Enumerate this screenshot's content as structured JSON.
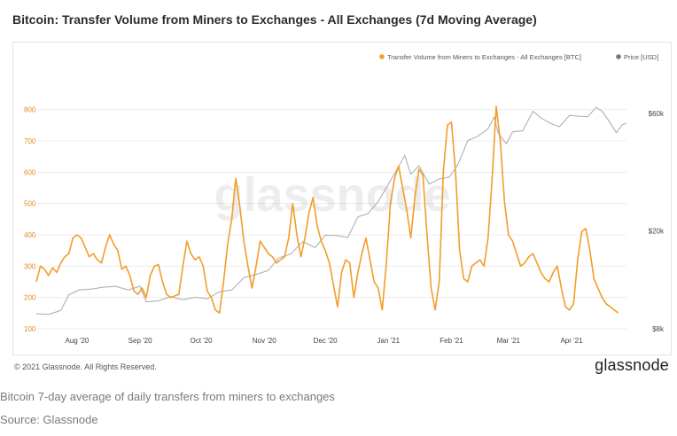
{
  "title": "Bitcoin: Transfer Volume from Miners to Exchanges - All Exchanges (7d Moving Average)",
  "copyright": "© 2021 Glassnode. All Rights Reserved.",
  "brand": "glassnode",
  "watermark": "glassnode",
  "caption": "Bitcoin 7-day average of daily transfers from miners to exchanges",
  "source": "Source: Glassnode",
  "colors": {
    "volume": "#f29d2a",
    "price": "#b0b0b0",
    "left_axis_text": "#e08a1e",
    "right_axis_text": "#444444",
    "grid": "#ececec"
  },
  "chart_data": {
    "type": "line",
    "legend_position": "top-right",
    "grid": true,
    "x_range": [
      "2020-07-12",
      "2021-04-28"
    ],
    "x_ticks": [
      {
        "date": "2020-08-01",
        "label": "Aug '20"
      },
      {
        "date": "2020-09-01",
        "label": "Sep '20"
      },
      {
        "date": "2020-10-01",
        "label": "Oct '20"
      },
      {
        "date": "2020-11-01",
        "label": "Nov '20"
      },
      {
        "date": "2020-12-01",
        "label": "Dec '20"
      },
      {
        "date": "2021-01-01",
        "label": "Jan '21"
      },
      {
        "date": "2021-02-01",
        "label": "Feb '21"
      },
      {
        "date": "2021-03-01",
        "label": "Mar '21"
      },
      {
        "date": "2021-04-01",
        "label": "Apr '21"
      }
    ],
    "y_left": {
      "range": [
        100,
        850
      ],
      "ticks": [
        100,
        200,
        300,
        400,
        500,
        600,
        700,
        800
      ]
    },
    "y_right": {
      "scale": "log",
      "range": [
        8000,
        72000
      ],
      "ticks": [
        {
          "value": 8000,
          "label": "$8k"
        },
        {
          "value": 20000,
          "label": "$20k"
        },
        {
          "value": 60000,
          "label": "$60k"
        }
      ]
    },
    "series": [
      {
        "name": "Transfer Volume from Miners to Exchanges - All Exchanges [BTC]",
        "axis": "left",
        "points": [
          [
            "2020-07-12",
            250
          ],
          [
            "2020-07-14",
            300
          ],
          [
            "2020-07-16",
            290
          ],
          [
            "2020-07-18",
            270
          ],
          [
            "2020-07-20",
            295
          ],
          [
            "2020-07-22",
            280
          ],
          [
            "2020-07-24",
            310
          ],
          [
            "2020-07-26",
            330
          ],
          [
            "2020-07-28",
            340
          ],
          [
            "2020-07-30",
            390
          ],
          [
            "2020-08-01",
            400
          ],
          [
            "2020-08-03",
            390
          ],
          [
            "2020-08-05",
            360
          ],
          [
            "2020-08-07",
            330
          ],
          [
            "2020-08-09",
            340
          ],
          [
            "2020-08-11",
            320
          ],
          [
            "2020-08-13",
            310
          ],
          [
            "2020-08-15",
            360
          ],
          [
            "2020-08-17",
            400
          ],
          [
            "2020-08-19",
            370
          ],
          [
            "2020-08-21",
            350
          ],
          [
            "2020-08-23",
            290
          ],
          [
            "2020-08-25",
            300
          ],
          [
            "2020-08-27",
            270
          ],
          [
            "2020-08-29",
            220
          ],
          [
            "2020-08-31",
            210
          ],
          [
            "2020-09-02",
            230
          ],
          [
            "2020-09-04",
            200
          ],
          [
            "2020-09-06",
            270
          ],
          [
            "2020-09-08",
            300
          ],
          [
            "2020-09-10",
            305
          ],
          [
            "2020-09-12",
            250
          ],
          [
            "2020-09-14",
            210
          ],
          [
            "2020-09-16",
            200
          ],
          [
            "2020-09-18",
            205
          ],
          [
            "2020-09-20",
            210
          ],
          [
            "2020-09-22",
            300
          ],
          [
            "2020-09-24",
            380
          ],
          [
            "2020-09-26",
            340
          ],
          [
            "2020-09-28",
            320
          ],
          [
            "2020-09-30",
            330
          ],
          [
            "2020-10-02",
            300
          ],
          [
            "2020-10-04",
            220
          ],
          [
            "2020-10-06",
            200
          ],
          [
            "2020-10-08",
            160
          ],
          [
            "2020-10-10",
            150
          ],
          [
            "2020-10-12",
            250
          ],
          [
            "2020-10-14",
            370
          ],
          [
            "2020-10-16",
            450
          ],
          [
            "2020-10-18",
            580
          ],
          [
            "2020-10-20",
            490
          ],
          [
            "2020-10-22",
            380
          ],
          [
            "2020-10-24",
            300
          ],
          [
            "2020-10-26",
            230
          ],
          [
            "2020-10-28",
            300
          ],
          [
            "2020-10-30",
            380
          ],
          [
            "2020-11-01",
            360
          ],
          [
            "2020-11-03",
            340
          ],
          [
            "2020-11-05",
            330
          ],
          [
            "2020-11-07",
            310
          ],
          [
            "2020-11-09",
            320
          ],
          [
            "2020-11-11",
            330
          ],
          [
            "2020-11-13",
            390
          ],
          [
            "2020-11-15",
            500
          ],
          [
            "2020-11-17",
            400
          ],
          [
            "2020-11-19",
            330
          ],
          [
            "2020-11-21",
            390
          ],
          [
            "2020-11-23",
            470
          ],
          [
            "2020-11-25",
            520
          ],
          [
            "2020-11-27",
            430
          ],
          [
            "2020-11-29",
            380
          ],
          [
            "2020-12-01",
            350
          ],
          [
            "2020-12-03",
            310
          ],
          [
            "2020-12-05",
            240
          ],
          [
            "2020-12-07",
            170
          ],
          [
            "2020-12-09",
            280
          ],
          [
            "2020-12-11",
            320
          ],
          [
            "2020-12-13",
            310
          ],
          [
            "2020-12-15",
            200
          ],
          [
            "2020-12-17",
            280
          ],
          [
            "2020-12-19",
            340
          ],
          [
            "2020-12-21",
            390
          ],
          [
            "2020-12-23",
            320
          ],
          [
            "2020-12-25",
            250
          ],
          [
            "2020-12-27",
            230
          ],
          [
            "2020-12-29",
            160
          ],
          [
            "2020-12-31",
            310
          ],
          [
            "2021-01-02",
            500
          ],
          [
            "2021-01-04",
            580
          ],
          [
            "2021-01-06",
            620
          ],
          [
            "2021-01-08",
            550
          ],
          [
            "2021-01-10",
            480
          ],
          [
            "2021-01-12",
            390
          ],
          [
            "2021-01-14",
            520
          ],
          [
            "2021-01-16",
            610
          ],
          [
            "2021-01-18",
            590
          ],
          [
            "2021-01-20",
            400
          ],
          [
            "2021-01-22",
            230
          ],
          [
            "2021-01-24",
            160
          ],
          [
            "2021-01-26",
            250
          ],
          [
            "2021-01-28",
            600
          ],
          [
            "2021-01-30",
            750
          ],
          [
            "2021-02-01",
            760
          ],
          [
            "2021-02-03",
            600
          ],
          [
            "2021-02-05",
            350
          ],
          [
            "2021-02-07",
            260
          ],
          [
            "2021-02-09",
            250
          ],
          [
            "2021-02-11",
            300
          ],
          [
            "2021-02-13",
            310
          ],
          [
            "2021-02-15",
            320
          ],
          [
            "2021-02-17",
            300
          ],
          [
            "2021-02-19",
            390
          ],
          [
            "2021-02-21",
            580
          ],
          [
            "2021-02-23",
            810
          ],
          [
            "2021-02-25",
            700
          ],
          [
            "2021-02-27",
            510
          ],
          [
            "2021-03-01",
            400
          ],
          [
            "2021-03-03",
            380
          ],
          [
            "2021-03-05",
            340
          ],
          [
            "2021-03-07",
            300
          ],
          [
            "2021-03-09",
            310
          ],
          [
            "2021-03-11",
            330
          ],
          [
            "2021-03-13",
            340
          ],
          [
            "2021-03-15",
            310
          ],
          [
            "2021-03-17",
            280
          ],
          [
            "2021-03-19",
            260
          ],
          [
            "2021-03-21",
            250
          ],
          [
            "2021-03-23",
            280
          ],
          [
            "2021-03-25",
            300
          ],
          [
            "2021-03-27",
            230
          ],
          [
            "2021-03-29",
            170
          ],
          [
            "2021-03-31",
            160
          ],
          [
            "2021-04-02",
            180
          ],
          [
            "2021-04-04",
            320
          ],
          [
            "2021-04-06",
            410
          ],
          [
            "2021-04-08",
            420
          ],
          [
            "2021-04-10",
            350
          ],
          [
            "2021-04-12",
            260
          ],
          [
            "2021-04-14",
            230
          ],
          [
            "2021-04-16",
            200
          ],
          [
            "2021-04-18",
            180
          ],
          [
            "2021-04-20",
            170
          ],
          [
            "2021-04-22",
            160
          ],
          [
            "2021-04-24",
            150
          ]
        ]
      },
      {
        "name": "Price [USD]",
        "axis": "right",
        "points": [
          [
            "2020-07-12",
            9200
          ],
          [
            "2020-07-18",
            9150
          ],
          [
            "2020-07-24",
            9500
          ],
          [
            "2020-07-28",
            11000
          ],
          [
            "2020-08-02",
            11500
          ],
          [
            "2020-08-08",
            11600
          ],
          [
            "2020-08-14",
            11800
          ],
          [
            "2020-08-20",
            11900
          ],
          [
            "2020-08-26",
            11500
          ],
          [
            "2020-09-01",
            11900
          ],
          [
            "2020-09-04",
            10300
          ],
          [
            "2020-09-10",
            10400
          ],
          [
            "2020-09-16",
            10800
          ],
          [
            "2020-09-22",
            10500
          ],
          [
            "2020-09-28",
            10750
          ],
          [
            "2020-10-04",
            10600
          ],
          [
            "2020-10-10",
            11300
          ],
          [
            "2020-10-16",
            11500
          ],
          [
            "2020-10-22",
            12900
          ],
          [
            "2020-10-28",
            13300
          ],
          [
            "2020-11-03",
            13800
          ],
          [
            "2020-11-08",
            15500
          ],
          [
            "2020-11-14",
            16100
          ],
          [
            "2020-11-20",
            18100
          ],
          [
            "2020-11-26",
            17100
          ],
          [
            "2020-12-01",
            19200
          ],
          [
            "2020-12-07",
            19100
          ],
          [
            "2020-12-12",
            18800
          ],
          [
            "2020-12-17",
            22800
          ],
          [
            "2020-12-22",
            23500
          ],
          [
            "2020-12-27",
            26300
          ],
          [
            "2021-01-02",
            32000
          ],
          [
            "2021-01-06",
            36500
          ],
          [
            "2021-01-09",
            40500
          ],
          [
            "2021-01-12",
            34000
          ],
          [
            "2021-01-16",
            36800
          ],
          [
            "2021-01-21",
            31000
          ],
          [
            "2021-01-26",
            32500
          ],
          [
            "2021-01-31",
            33100
          ],
          [
            "2021-02-04",
            37000
          ],
          [
            "2021-02-09",
            46500
          ],
          [
            "2021-02-14",
            48500
          ],
          [
            "2021-02-19",
            52000
          ],
          [
            "2021-02-22",
            58000
          ],
          [
            "2021-02-24",
            49700
          ],
          [
            "2021-02-28",
            45200
          ],
          [
            "2021-03-03",
            50500
          ],
          [
            "2021-03-08",
            51000
          ],
          [
            "2021-03-13",
            61200
          ],
          [
            "2021-03-17",
            57500
          ],
          [
            "2021-03-22",
            54500
          ],
          [
            "2021-03-26",
            53000
          ],
          [
            "2021-03-31",
            58900
          ],
          [
            "2021-04-04",
            58500
          ],
          [
            "2021-04-09",
            58200
          ],
          [
            "2021-04-13",
            63500
          ],
          [
            "2021-04-16",
            61300
          ],
          [
            "2021-04-19",
            56500
          ],
          [
            "2021-04-23",
            50100
          ],
          [
            "2021-04-26",
            54000
          ],
          [
            "2021-04-28",
            54700
          ]
        ]
      }
    ]
  }
}
